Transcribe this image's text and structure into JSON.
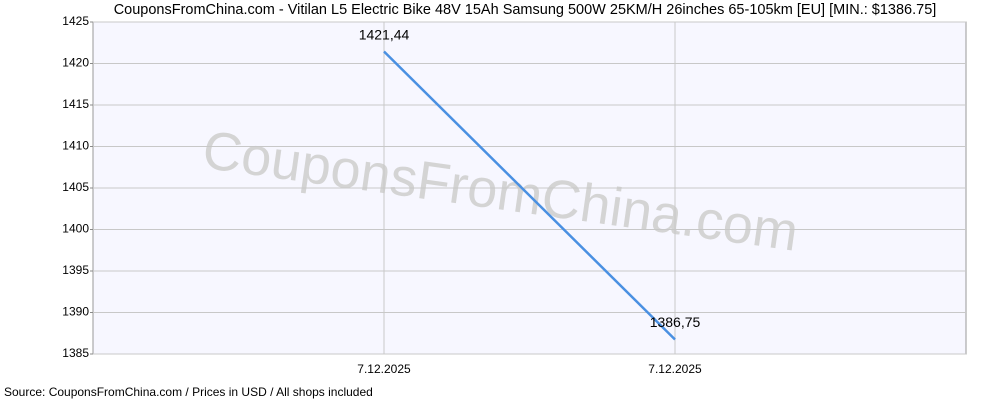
{
  "chart_data": {
    "type": "line",
    "title": "CouponsFromChina.com - Vitilan L5 Electric Bike 48V 15Ah Samsung 500W 25KM/H 26inches 65-105km [EU] [MIN.: $1386.75]",
    "watermark": "CouponsFromChina.com",
    "source": "Source: CouponsFromChina.com / Prices in USD / All shops included",
    "categories": [
      "7.12.2025",
      "7.12.2025"
    ],
    "series": [
      {
        "color": "#4a90e2",
        "values": [
          1421.44,
          1386.75
        ],
        "value_labels": [
          "1421,44",
          "1386,75"
        ]
      }
    ],
    "ylim": [
      1385,
      1425
    ],
    "yticks": [
      1385,
      1390,
      1395,
      1400,
      1405,
      1410,
      1415,
      1420,
      1425
    ],
    "grid": true
  }
}
